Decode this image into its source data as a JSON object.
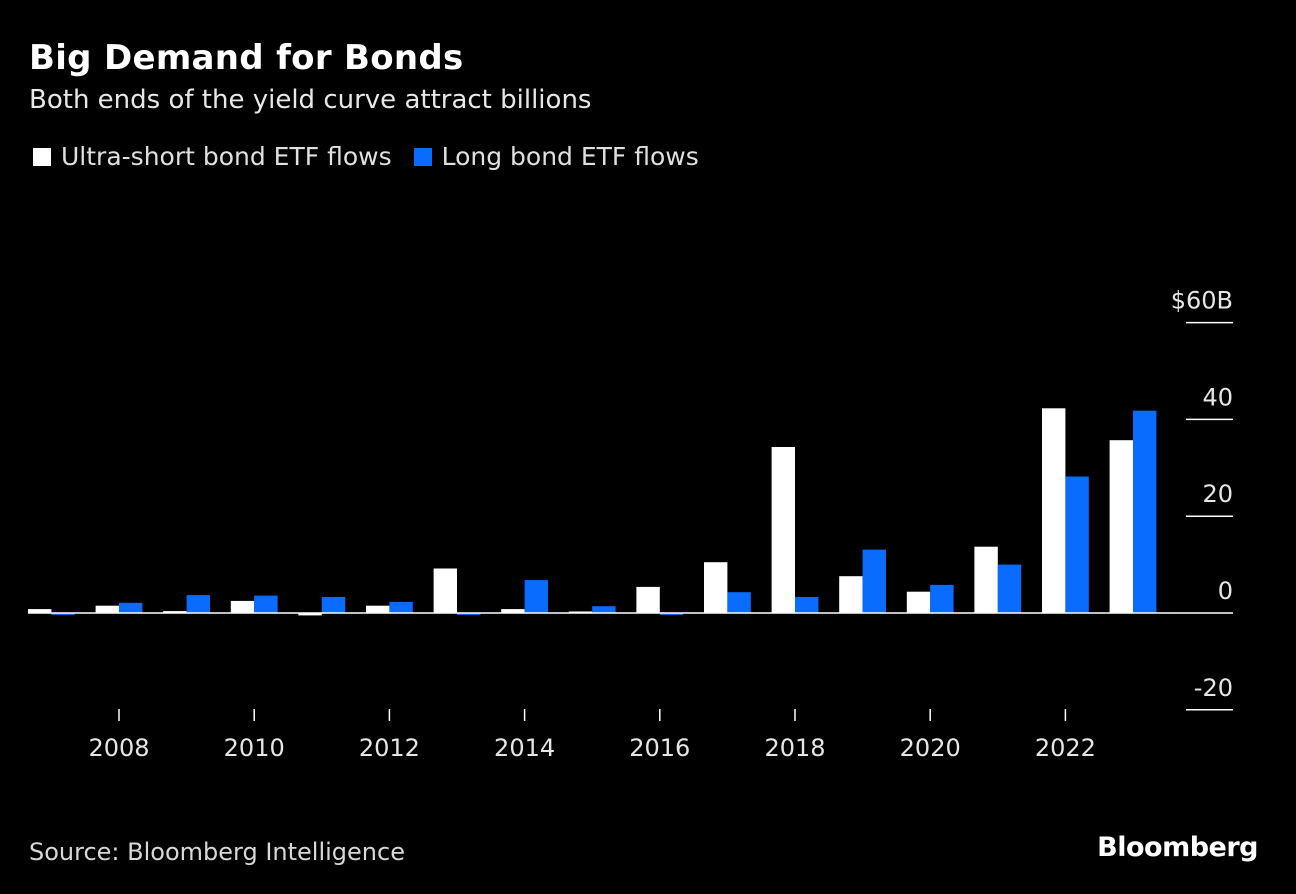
{
  "title": "Big Demand for Bonds",
  "subtitle": "Both ends of the yield curve attract billions",
  "source": "Source: Bloomberg Intelligence",
  "brand": "Bloomberg",
  "colors": {
    "background": "#000000",
    "ultra_short": "#ffffff",
    "long": "#0a6cff",
    "axis": "#ffffff"
  },
  "chart_data": {
    "type": "bar",
    "categories": [
      "2007",
      "2008",
      "2009",
      "2010",
      "2011",
      "2012",
      "2013",
      "2014",
      "2015",
      "2016",
      "2017",
      "2018",
      "2019",
      "2020",
      "2021",
      "2022",
      "2023"
    ],
    "series": [
      {
        "name": "Ultra-short bond ETF flows",
        "color": "#ffffff",
        "values": [
          0.8,
          1.5,
          0.4,
          2.5,
          -0.5,
          1.5,
          9.2,
          0.8,
          0.0,
          5.4,
          10.5,
          34.3,
          7.6,
          4.4,
          13.7,
          42.3,
          35.7
        ]
      },
      {
        "name": "Long bond ETF flows",
        "color": "#0a6cff",
        "values": [
          -0.4,
          2.1,
          3.7,
          3.6,
          3.3,
          2.3,
          -0.4,
          6.8,
          1.4,
          -0.4,
          4.3,
          3.3,
          13.1,
          5.8,
          10.0,
          28.2,
          41.8
        ]
      }
    ],
    "y_ticks": [
      {
        "value": 60,
        "label": "$60B"
      },
      {
        "value": 40,
        "label": "40"
      },
      {
        "value": 20,
        "label": "20"
      },
      {
        "value": 0,
        "label": "0"
      },
      {
        "value": -20,
        "label": "-20"
      }
    ],
    "x_tick_labels": [
      "2008",
      "2010",
      "2012",
      "2014",
      "2016",
      "2018",
      "2020",
      "2022"
    ],
    "ylim": [
      -20,
      60
    ],
    "xlabel": "",
    "ylabel": "",
    "legend_position": "top-left",
    "grid": false
  }
}
